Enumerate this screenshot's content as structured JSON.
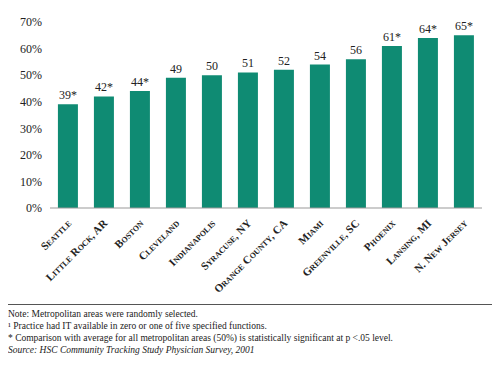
{
  "chart_data": {
    "type": "bar",
    "categories": [
      "Seattle",
      "Little Rock, AR",
      "Boston",
      "Cleveland",
      "Indianapolis",
      "Syracuse, NY",
      "Orange County, CA",
      "Miami",
      "Greenville, SC",
      "Phoenix",
      "Lansing, MI",
      "N. New Jersey"
    ],
    "values": [
      39,
      42,
      44,
      49,
      50,
      51,
      52,
      54,
      56,
      61,
      64,
      65
    ],
    "value_labels": [
      "39*",
      "42*",
      "44*",
      "49",
      "50",
      "51",
      "52",
      "54",
      "56",
      "61*",
      "64*",
      "65*"
    ],
    "data_labels": true,
    "color": "#0f8b73",
    "ylim": [
      0,
      70
    ],
    "yticks": [
      {
        "value": 0,
        "label": "0%"
      },
      {
        "value": 10,
        "label": "10%"
      },
      {
        "value": 20,
        "label": "20%"
      },
      {
        "value": 30,
        "label": "30%"
      },
      {
        "value": 40,
        "label": "40%"
      },
      {
        "value": 50,
        "label": "50%"
      },
      {
        "value": 60,
        "label": "60%"
      },
      {
        "value": 70,
        "label": "70%"
      }
    ],
    "grid": false,
    "annotations": [
      "Note: Metropolitan areas were randomly selected.",
      "¹ Practice had IT available in zero or one of five specified functions.",
      "* Comparison with average for all metropolitan areas (50%) is statistically significant at p <.05 level.",
      "Source: HSC Community Tracking Study Physician Survey, 2001"
    ]
  }
}
